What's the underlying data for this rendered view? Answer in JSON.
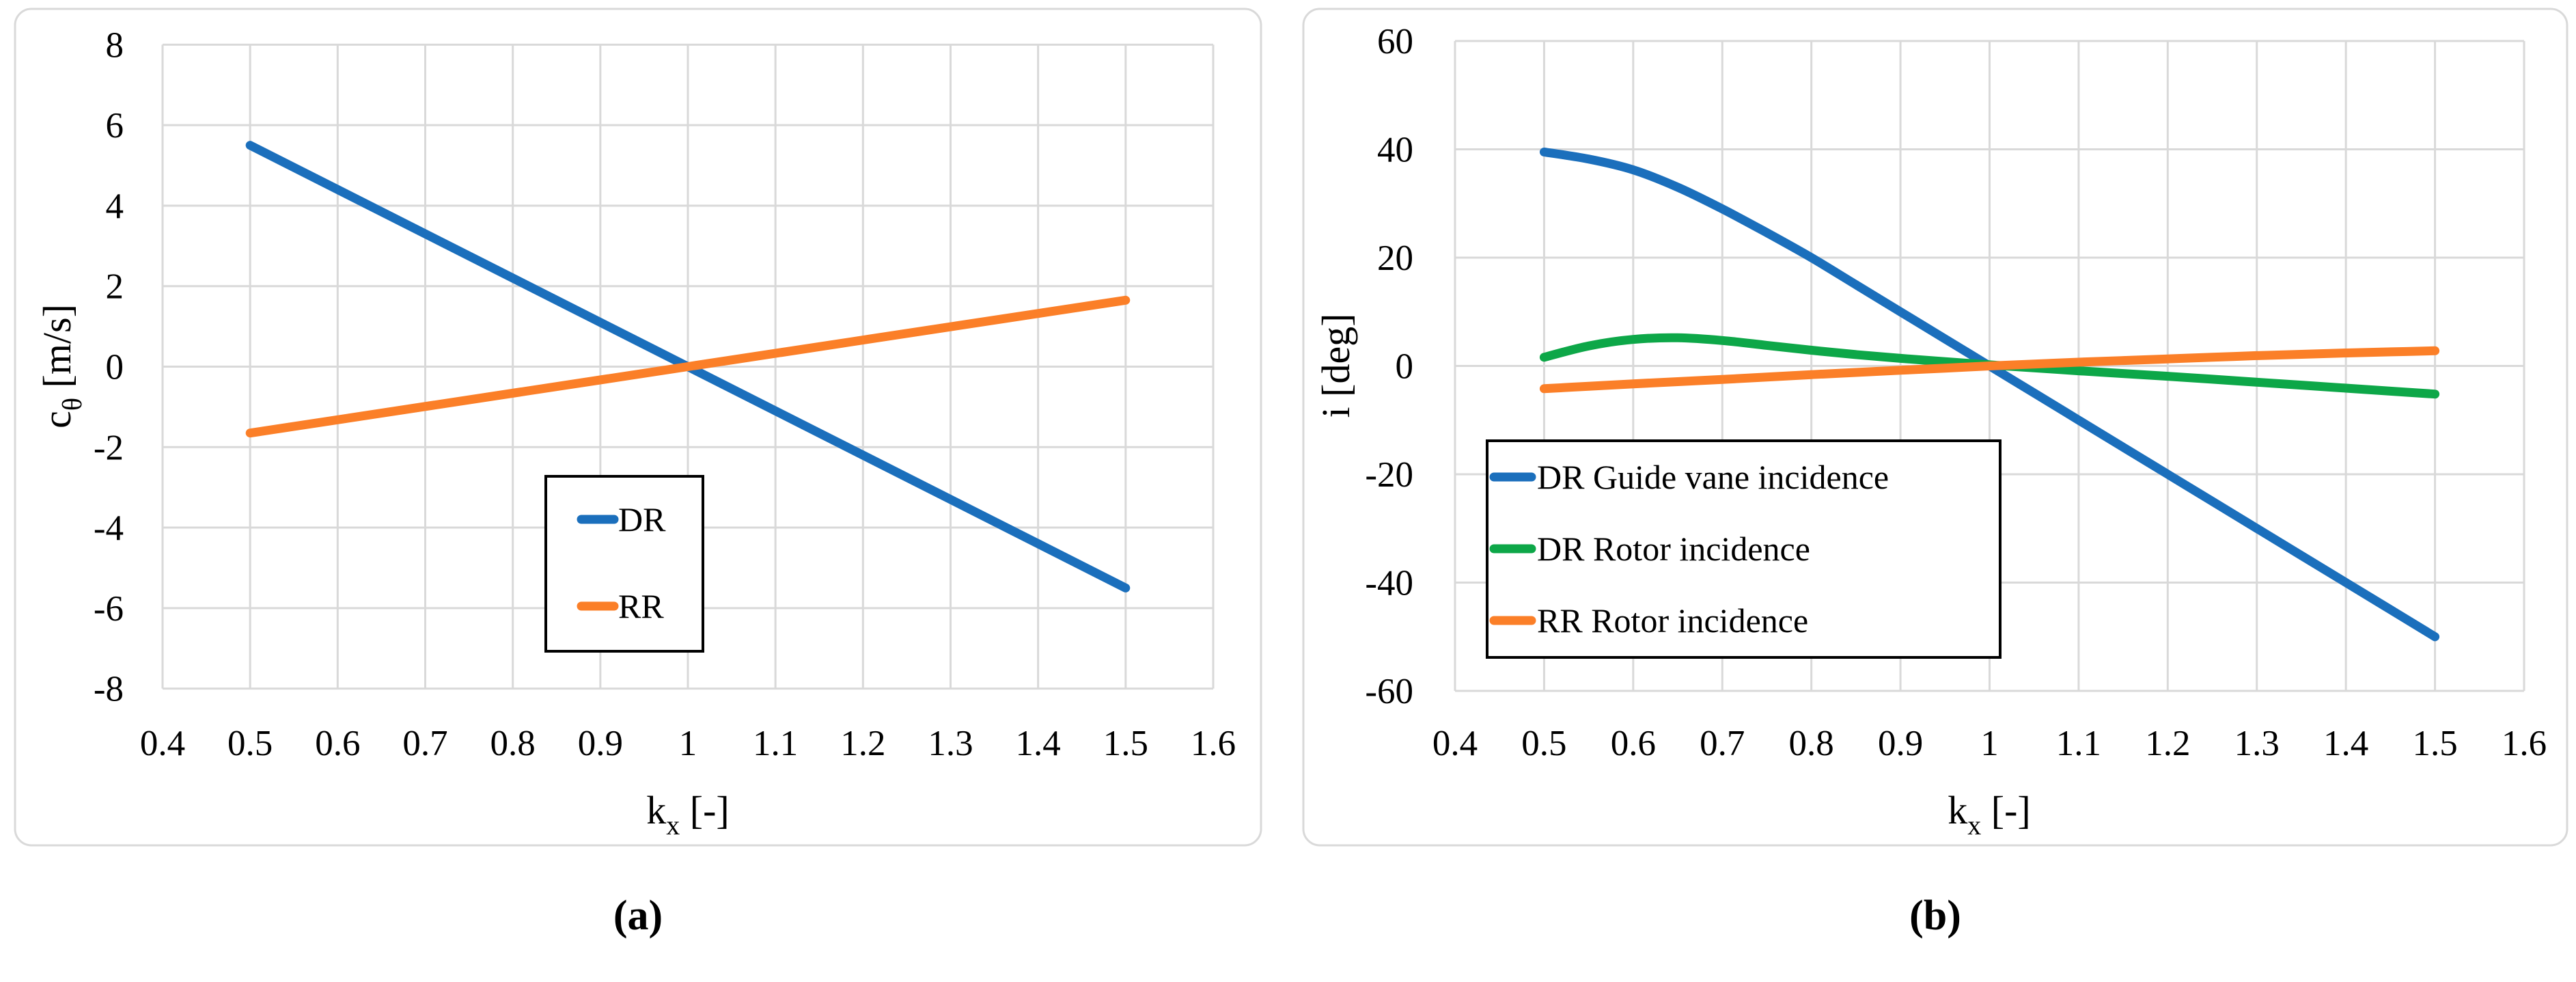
{
  "figure": {
    "background": "#FFFFFF",
    "gridline_color": "#D9D9D9",
    "chart_border_color": "#D9D9D9",
    "legend_border_color": "#000000",
    "series_line_width": 13
  },
  "chart_data": [
    {
      "type": "line",
      "caption": "(a)",
      "title": "",
      "xlabel": {
        "main": "k",
        "sub": "x",
        "rest": " [-]"
      },
      "ylabel": {
        "main": "c",
        "sub": "θ",
        "rest": " [m/s]"
      },
      "xlim": [
        0.4,
        1.6
      ],
      "ylim": [
        -8,
        8
      ],
      "grid": true,
      "x_ticks": {
        "values": [
          0.4,
          0.5,
          0.6,
          0.7,
          0.8,
          0.9,
          1.0,
          1.1,
          1.2,
          1.3,
          1.4,
          1.5,
          1.6
        ],
        "labels": [
          "0.4",
          "0.5",
          "0.6",
          "0.7",
          "0.8",
          "0.9",
          "1",
          "1.1",
          "1.2",
          "1.3",
          "1.4",
          "1.5",
          "1.6"
        ]
      },
      "y_ticks": {
        "values": [
          8,
          6,
          4,
          2,
          0,
          -2,
          -4,
          -6,
          -8
        ],
        "labels": [
          "8",
          "6",
          "4",
          "2",
          "0",
          "-2",
          "-4",
          "-6",
          "-8"
        ]
      },
      "legend": {
        "position": "center-of-plot",
        "items": [
          {
            "label": "DR",
            "color": "#1B6FBC"
          },
          {
            "label": "RR",
            "color": "#FB7F28"
          }
        ]
      },
      "series": [
        {
          "name": "DR",
          "color": "#1B6FBC",
          "points": [
            [
              0.5,
              5.5
            ],
            [
              1.0,
              0.0
            ],
            [
              1.5,
              -5.5
            ]
          ]
        },
        {
          "name": "RR",
          "color": "#FB7F28",
          "points": [
            [
              0.5,
              -1.65
            ],
            [
              1.0,
              0.0
            ],
            [
              1.5,
              1.65
            ]
          ]
        }
      ]
    },
    {
      "type": "line",
      "caption": "(b)",
      "title": "",
      "xlabel": {
        "main": "k",
        "sub": "x",
        "rest": " [-]"
      },
      "ylabel": {
        "main": "i",
        "sub": "",
        "rest": " [deg]"
      },
      "xlim": [
        0.4,
        1.6
      ],
      "ylim": [
        -60,
        60
      ],
      "grid": true,
      "x_ticks": {
        "values": [
          0.4,
          0.5,
          0.6,
          0.7,
          0.8,
          0.9,
          1.0,
          1.1,
          1.2,
          1.3,
          1.4,
          1.5,
          1.6
        ],
        "labels": [
          "0.4",
          "0.5",
          "0.6",
          "0.7",
          "0.8",
          "0.9",
          "1",
          "1.1",
          "1.2",
          "1.3",
          "1.4",
          "1.5",
          "1.6"
        ]
      },
      "y_ticks": {
        "values": [
          60,
          40,
          20,
          0,
          -20,
          -40,
          -60
        ],
        "labels": [
          "60",
          "40",
          "20",
          "0",
          "-20",
          "-40",
          "-60"
        ]
      },
      "legend": {
        "position": "lower-left-of-plot",
        "items": [
          {
            "label": "DR Guide vane incidence",
            "color": "#1B6FBC"
          },
          {
            "label": "DR Rotor incidence",
            "color": "#0DA748"
          },
          {
            "label": "RR Rotor incidence",
            "color": "#FB7F28"
          }
        ]
      },
      "series": [
        {
          "name": "DR Guide vane incidence",
          "color": "#1B6FBC",
          "points": [
            [
              0.5,
              39.5
            ],
            [
              0.55,
              38.2
            ],
            [
              0.6,
              36.2
            ],
            [
              0.65,
              33.0
            ],
            [
              0.7,
              29.0
            ],
            [
              0.75,
              24.6
            ],
            [
              0.8,
              20.0
            ],
            [
              0.85,
              15.0
            ],
            [
              0.9,
              10.0
            ],
            [
              0.95,
              5.0
            ],
            [
              1.0,
              0.0
            ],
            [
              1.05,
              -5.0
            ],
            [
              1.1,
              -10.0
            ],
            [
              1.15,
              -15.0
            ],
            [
              1.2,
              -20.0
            ],
            [
              1.25,
              -25.0
            ],
            [
              1.3,
              -30.0
            ],
            [
              1.35,
              -35.0
            ],
            [
              1.4,
              -40.0
            ],
            [
              1.45,
              -45.0
            ],
            [
              1.5,
              -50.0
            ]
          ]
        },
        {
          "name": "DR Rotor incidence",
          "color": "#0DA748",
          "points": [
            [
              0.5,
              1.6
            ],
            [
              0.55,
              3.7
            ],
            [
              0.6,
              4.9
            ],
            [
              0.65,
              5.2
            ],
            [
              0.7,
              4.7
            ],
            [
              0.75,
              3.8
            ],
            [
              0.8,
              2.9
            ],
            [
              0.85,
              2.1
            ],
            [
              0.9,
              1.4
            ],
            [
              0.95,
              0.8
            ],
            [
              1.0,
              0.2
            ],
            [
              1.05,
              -0.35
            ],
            [
              1.1,
              -0.9
            ],
            [
              1.15,
              -1.4
            ],
            [
              1.2,
              -1.9
            ],
            [
              1.25,
              -2.45
            ],
            [
              1.3,
              -3.0
            ],
            [
              1.35,
              -3.55
            ],
            [
              1.4,
              -4.1
            ],
            [
              1.45,
              -4.65
            ],
            [
              1.5,
              -5.2
            ]
          ]
        },
        {
          "name": "RR Rotor incidence",
          "color": "#FB7F28",
          "points": [
            [
              0.5,
              -4.2
            ],
            [
              0.55,
              -3.75
            ],
            [
              0.6,
              -3.3
            ],
            [
              0.65,
              -2.9
            ],
            [
              0.7,
              -2.5
            ],
            [
              0.75,
              -2.05
            ],
            [
              0.8,
              -1.6
            ],
            [
              0.85,
              -1.2
            ],
            [
              0.9,
              -0.8
            ],
            [
              0.95,
              -0.4
            ],
            [
              1.0,
              0.0
            ],
            [
              1.05,
              0.35
            ],
            [
              1.1,
              0.7
            ],
            [
              1.15,
              1.0
            ],
            [
              1.2,
              1.3
            ],
            [
              1.25,
              1.6
            ],
            [
              1.3,
              1.9
            ],
            [
              1.35,
              2.15
            ],
            [
              1.4,
              2.4
            ],
            [
              1.45,
              2.6
            ],
            [
              1.5,
              2.8
            ]
          ]
        }
      ]
    }
  ]
}
